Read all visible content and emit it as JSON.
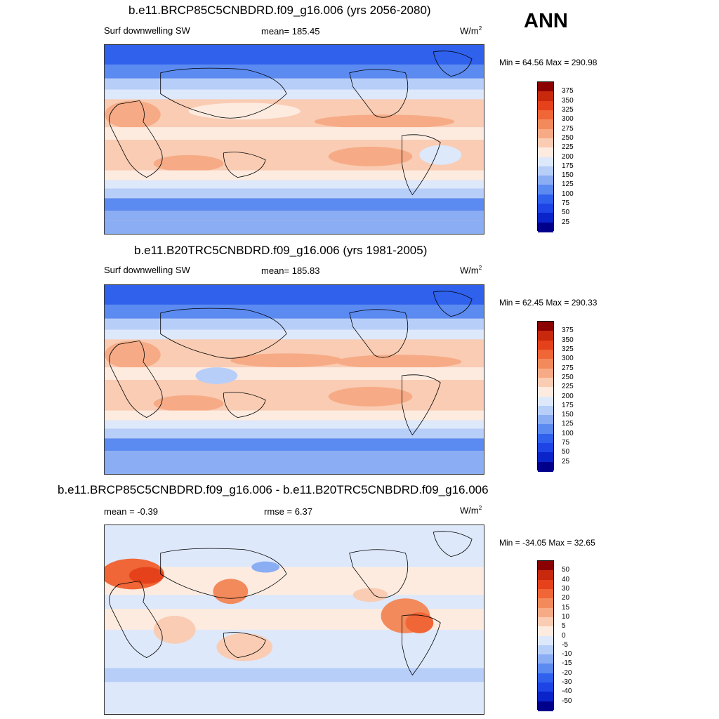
{
  "season": "ANN",
  "colors": {
    "abs_scale": [
      "#00008b",
      "#0a24c9",
      "#1e44e6",
      "#2f61ed",
      "#5b8af0",
      "#8aadf4",
      "#b7cef8",
      "#dde8fb",
      "#fdebe0",
      "#f9ccb3",
      "#f6ab86",
      "#f38a5c",
      "#f06636",
      "#e5421b",
      "#c8280c",
      "#8b0000"
    ],
    "diff_scale": [
      "#00008b",
      "#0a24c9",
      "#1e44e6",
      "#2f61ed",
      "#5b8af0",
      "#8aadf4",
      "#b7cef8",
      "#dde8fb",
      "#fdebe0",
      "#f9ccb3",
      "#f6ab86",
      "#f38a5c",
      "#f06636",
      "#e5421b",
      "#c8280c",
      "#8b0000"
    ]
  },
  "panels": [
    {
      "title": "b.e11.BRCP85C5CNBDRD.f09_g16.006 (yrs 2056-2080)",
      "left_label": "Surf downwelling SW",
      "center_label": "mean= 185.45",
      "units_base": "W/m",
      "units_exp": "2",
      "minmax": "Min =  64.56 Max = 290.98",
      "kind": "abs",
      "levels": [
        "375",
        "350",
        "325",
        "300",
        "275",
        "250",
        "225",
        "200",
        "175",
        "150",
        "125",
        "100",
        "75",
        "50",
        "25"
      ]
    },
    {
      "title": "b.e11.B20TRC5CNBDRD.f09_g16.006 (yrs 1981-2005)",
      "left_label": "Surf downwelling SW",
      "center_label": "mean= 185.83",
      "units_base": "W/m",
      "units_exp": "2",
      "minmax": "Min =  62.45 Max = 290.33",
      "kind": "abs",
      "levels": [
        "375",
        "350",
        "325",
        "300",
        "275",
        "250",
        "225",
        "200",
        "175",
        "150",
        "125",
        "100",
        "75",
        "50",
        "25"
      ]
    },
    {
      "title": "b.e11.BRCP85C5CNBDRD.f09_g16.006 - b.e11.B20TRC5CNBDRD.f09_g16.006",
      "left_label": "mean =  -0.39",
      "center_label": "rmse =    6.37",
      "units_base": "W/m",
      "units_exp": "2",
      "minmax": "Min = -34.05 Max =  32.65",
      "kind": "diff",
      "levels": [
        "50",
        "40",
        "30",
        "20",
        "15",
        "10",
        "5",
        "0",
        "-5",
        "-10",
        "-15",
        "-20",
        "-30",
        "-40",
        "-50"
      ]
    }
  ]
}
